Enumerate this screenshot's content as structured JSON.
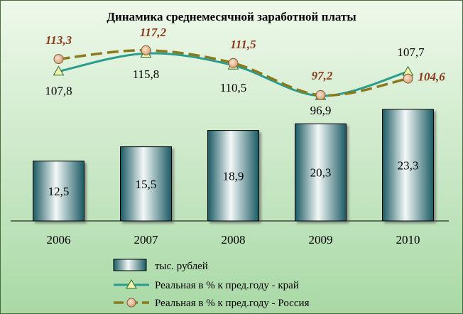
{
  "chart_data": {
    "type": "bar",
    "title": "Динамика среднемесячной заработной платы",
    "categories": [
      "2006",
      "2007",
      "2008",
      "2009",
      "2010"
    ],
    "xlabel": "",
    "ylabel": "",
    "series": [
      {
        "name": "тыс. рублей",
        "kind": "bar",
        "values": [
          12.5,
          15.5,
          18.9,
          20.3,
          23.3
        ],
        "labels": [
          "12,5",
          "15,5",
          "18,9",
          "20,3",
          "23,3"
        ],
        "color": "#1f6f78"
      },
      {
        "name": "Реальная в % к пред.году - край",
        "kind": "line",
        "marker": "triangle",
        "values": [
          107.8,
          115.8,
          110.5,
          96.9,
          107.7
        ],
        "labels": [
          "107,8",
          "115,8",
          "110,5",
          "96,9",
          "107,7"
        ],
        "color": "#2a9d8f"
      },
      {
        "name": "Реальная в % к пред.году - Россия",
        "kind": "line",
        "marker": "circle",
        "dashed": true,
        "values": [
          113.3,
          117.2,
          111.5,
          97.2,
          104.6
        ],
        "labels": [
          "113,3",
          "117,2",
          "111,5",
          "97,2",
          "104,6"
        ],
        "color": "#8a7a1e"
      }
    ],
    "grid": false,
    "legend": "bottom"
  }
}
